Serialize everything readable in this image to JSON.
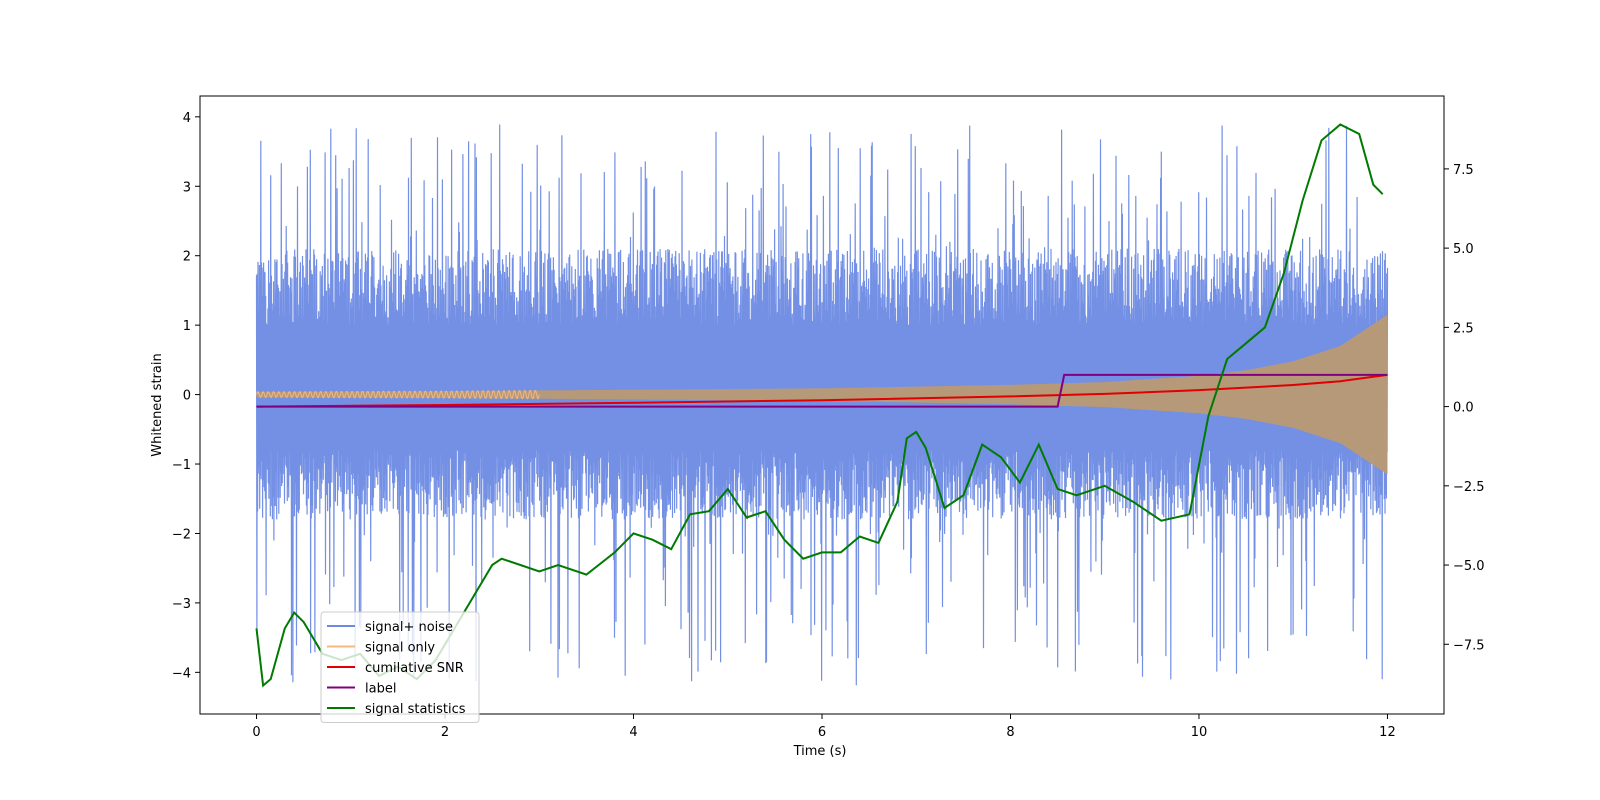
{
  "chart_data": {
    "type": "line",
    "title": "",
    "xlabel": "Time (s)",
    "ylabel": "Whitened strain",
    "xlim": [
      -0.6,
      12.6
    ],
    "ylim": [
      -4.6,
      4.3
    ],
    "y2lim": [
      -9.7,
      9.8
    ],
    "xticks": [
      0,
      2,
      4,
      6,
      8,
      10,
      12
    ],
    "yticks": [
      -4,
      -3,
      -2,
      -1,
      0,
      1,
      2,
      3,
      4
    ],
    "y2ticks": [
      -7.5,
      -5.0,
      -2.5,
      0.0,
      2.5,
      5.0,
      7.5
    ],
    "xtick_labels": [
      "0",
      "2",
      "4",
      "6",
      "8",
      "10",
      "12"
    ],
    "ytick_labels": [
      "−4",
      "−3",
      "−2",
      "−1",
      "0",
      "1",
      "2",
      "3",
      "4"
    ],
    "y2tick_labels": [
      "−7.5",
      "−5.0",
      "−2.5",
      "0.0",
      "2.5",
      "5.0",
      "7.5"
    ],
    "legend": {
      "location": "lower-left",
      "entries": [
        {
          "label": "signal+ noise",
          "color": "#6c8ae4"
        },
        {
          "label": "signal only",
          "color": "#f5b880"
        },
        {
          "label": "cumilative SNR",
          "color": "#e00000"
        },
        {
          "label": "label",
          "color": "#800080"
        },
        {
          "label": "signal statistics",
          "color": "#007a00"
        }
      ]
    },
    "series": [
      {
        "name": "signal+ noise",
        "axis": "left",
        "color": "#6c8ae4",
        "style": "noise band",
        "x_range": [
          0,
          12
        ],
        "center": 0.1,
        "upper_typical": 2.0,
        "lower_typical": -1.9,
        "max": 3.9,
        "min": -4.2
      },
      {
        "name": "signal only",
        "axis": "left",
        "color": "#f5b880",
        "style": "chirp envelope",
        "x": [
          0,
          2,
          4,
          6,
          8,
          9,
          10,
          10.5,
          11,
          11.5,
          12
        ],
        "envelope": [
          0.04,
          0.05,
          0.07,
          0.09,
          0.14,
          0.18,
          0.27,
          0.35,
          0.48,
          0.7,
          1.15
        ]
      },
      {
        "name": "cumilative SNR",
        "axis": "right",
        "color": "#e00000",
        "x": [
          0,
          2,
          4,
          6,
          8,
          9,
          10,
          10.5,
          11,
          11.5,
          11.8,
          12
        ],
        "y": [
          0.0,
          0.05,
          0.12,
          0.2,
          0.32,
          0.4,
          0.52,
          0.6,
          0.68,
          0.8,
          0.92,
          1.0
        ]
      },
      {
        "name": "label",
        "axis": "right",
        "color": "#800080",
        "x": [
          0,
          8.5,
          8.57,
          12
        ],
        "y": [
          0,
          0,
          1,
          1
        ]
      },
      {
        "name": "signal statistics",
        "axis": "right",
        "color": "#007a00",
        "x": [
          0,
          0.07,
          0.15,
          0.3,
          0.4,
          0.5,
          0.7,
          0.9,
          1.1,
          1.3,
          1.5,
          1.7,
          1.9,
          2.1,
          2.3,
          2.5,
          2.6,
          2.8,
          3.0,
          3.2,
          3.5,
          3.8,
          4.0,
          4.2,
          4.4,
          4.6,
          4.8,
          5.0,
          5.2,
          5.4,
          5.6,
          5.8,
          6.0,
          6.2,
          6.4,
          6.6,
          6.8,
          6.9,
          7.0,
          7.1,
          7.3,
          7.5,
          7.7,
          7.9,
          8.1,
          8.3,
          8.5,
          8.7,
          9.0,
          9.3,
          9.6,
          9.9,
          10.1,
          10.3,
          10.5,
          10.7,
          10.9,
          11.1,
          11.3,
          11.5,
          11.7,
          11.85,
          11.95
        ],
        "y": [
          -7.0,
          -8.8,
          -8.6,
          -7.0,
          -6.5,
          -6.8,
          -7.8,
          -8.0,
          -7.8,
          -8.5,
          -8.2,
          -8.6,
          -8.0,
          -7.0,
          -6.0,
          -5.0,
          -4.8,
          -5.0,
          -5.2,
          -5.0,
          -5.3,
          -4.6,
          -4.0,
          -4.2,
          -4.5,
          -3.4,
          -3.3,
          -2.6,
          -3.5,
          -3.3,
          -4.2,
          -4.8,
          -4.6,
          -4.6,
          -4.1,
          -4.3,
          -3.0,
          -1.0,
          -0.8,
          -1.3,
          -3.2,
          -2.8,
          -1.2,
          -1.6,
          -2.4,
          -1.2,
          -2.6,
          -2.8,
          -2.5,
          -3.0,
          -3.6,
          -3.4,
          -0.3,
          1.5,
          2.0,
          2.5,
          4.2,
          6.5,
          8.4,
          8.9,
          8.6,
          7.0,
          6.7
        ]
      }
    ]
  }
}
